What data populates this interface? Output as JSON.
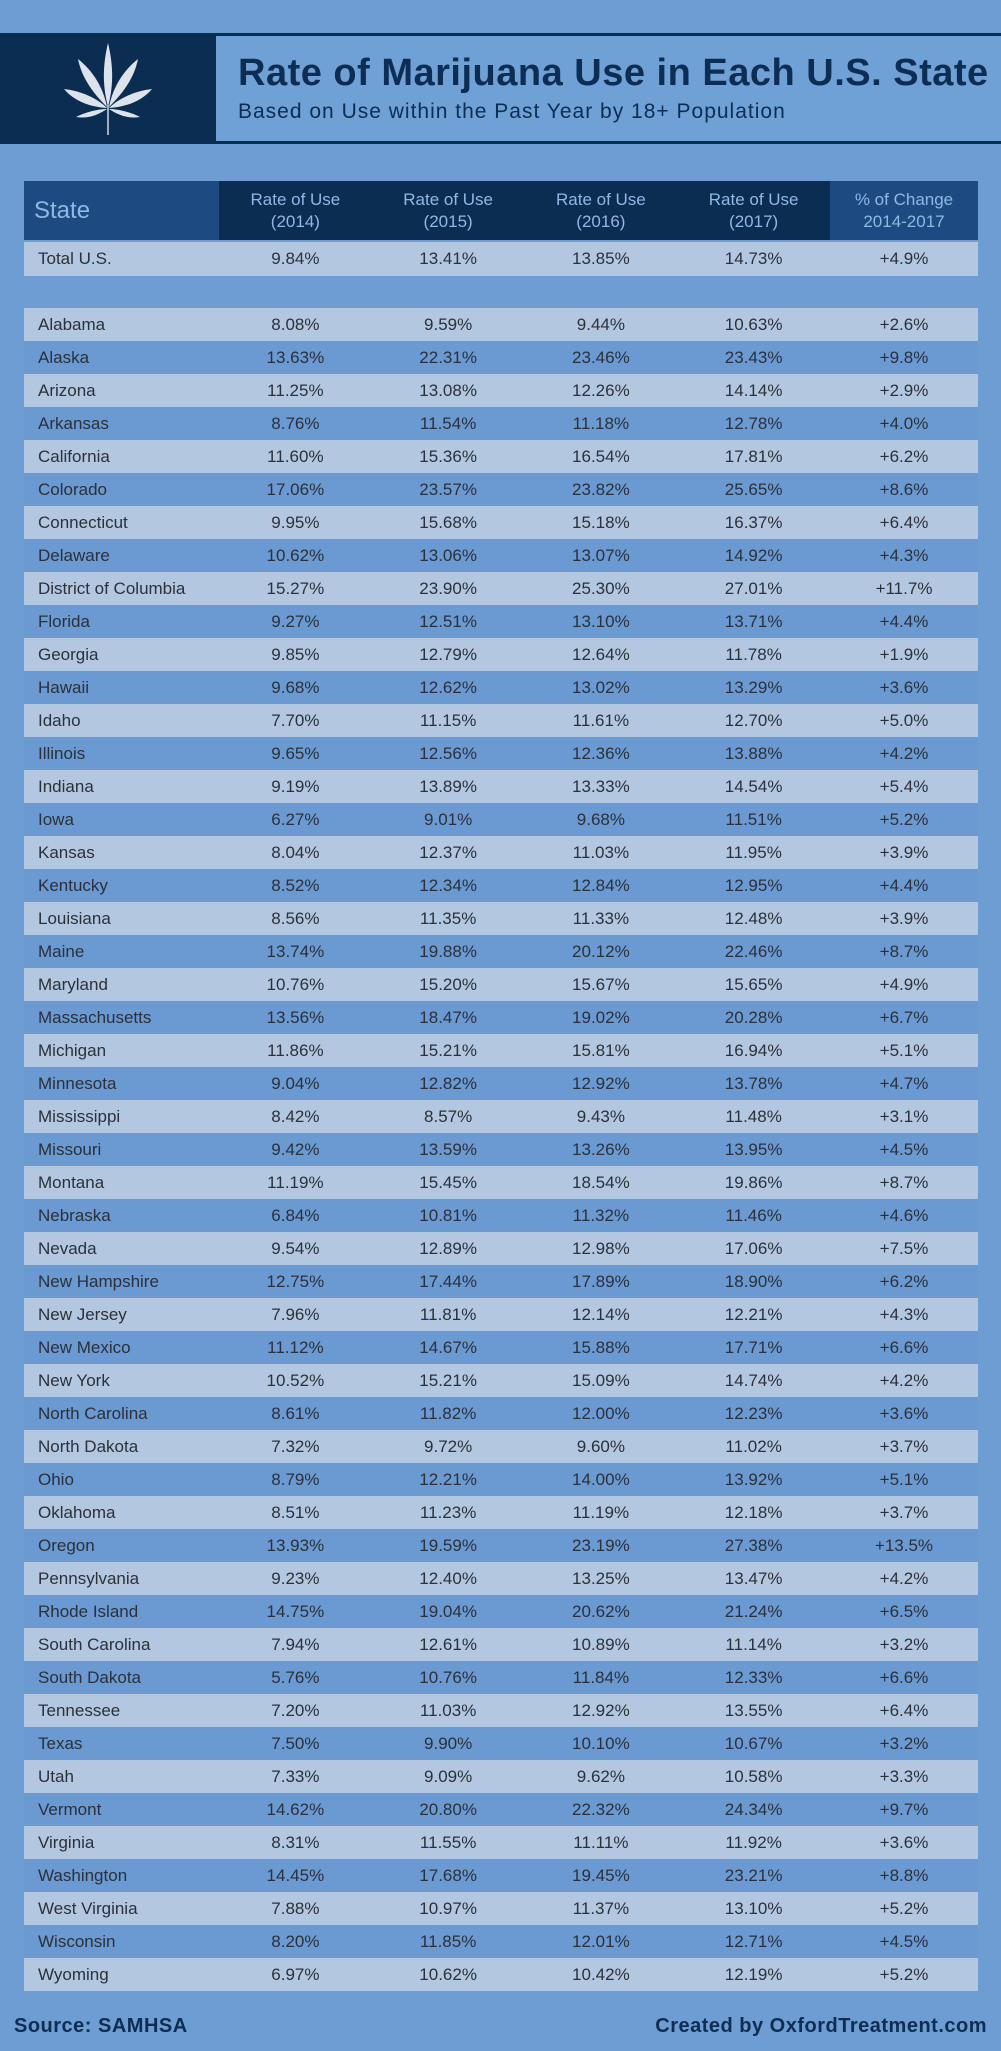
{
  "header": {
    "title": "Rate of Marijuana Use in Each U.S. State",
    "subtitle": "Based on Use within the Past Year by 18+ Population",
    "icon": "cannabis-leaf-icon"
  },
  "table": {
    "columns": [
      "State",
      "Rate of Use\n(2014)",
      "Rate of Use\n(2015)",
      "Rate of Use\n(2016)",
      "Rate of Use\n(2017)",
      "% of Change\n2014-2017"
    ],
    "total": [
      "Total U.S.",
      "9.84%",
      "13.41%",
      "13.85%",
      "14.73%",
      "+4.9%"
    ],
    "rows": [
      [
        "Alabama",
        "8.08%",
        "9.59%",
        "9.44%",
        "10.63%",
        "+2.6%"
      ],
      [
        "Alaska",
        "13.63%",
        "22.31%",
        "23.46%",
        "23.43%",
        "+9.8%"
      ],
      [
        "Arizona",
        "11.25%",
        "13.08%",
        "12.26%",
        "14.14%",
        "+2.9%"
      ],
      [
        "Arkansas",
        "8.76%",
        "11.54%",
        "11.18%",
        "12.78%",
        "+4.0%"
      ],
      [
        "California",
        "11.60%",
        "15.36%",
        "16.54%",
        "17.81%",
        "+6.2%"
      ],
      [
        "Colorado",
        "17.06%",
        "23.57%",
        "23.82%",
        "25.65%",
        "+8.6%"
      ],
      [
        "Connecticut",
        "9.95%",
        "15.68%",
        "15.18%",
        "16.37%",
        "+6.4%"
      ],
      [
        "Delaware",
        "10.62%",
        "13.06%",
        "13.07%",
        "14.92%",
        "+4.3%"
      ],
      [
        "District of Columbia",
        "15.27%",
        "23.90%",
        "25.30%",
        "27.01%",
        "+11.7%"
      ],
      [
        "Florida",
        "9.27%",
        "12.51%",
        "13.10%",
        "13.71%",
        "+4.4%"
      ],
      [
        "Georgia",
        "9.85%",
        "12.79%",
        "12.64%",
        "11.78%",
        "+1.9%"
      ],
      [
        "Hawaii",
        "9.68%",
        "12.62%",
        "13.02%",
        "13.29%",
        "+3.6%"
      ],
      [
        "Idaho",
        "7.70%",
        "11.15%",
        "11.61%",
        "12.70%",
        "+5.0%"
      ],
      [
        "Illinois",
        "9.65%",
        "12.56%",
        "12.36%",
        "13.88%",
        "+4.2%"
      ],
      [
        "Indiana",
        "9.19%",
        "13.89%",
        "13.33%",
        "14.54%",
        "+5.4%"
      ],
      [
        "Iowa",
        "6.27%",
        "9.01%",
        "9.68%",
        "11.51%",
        "+5.2%"
      ],
      [
        "Kansas",
        "8.04%",
        "12.37%",
        "11.03%",
        "11.95%",
        "+3.9%"
      ],
      [
        "Kentucky",
        "8.52%",
        "12.34%",
        "12.84%",
        "12.95%",
        "+4.4%"
      ],
      [
        "Louisiana",
        "8.56%",
        "11.35%",
        "11.33%",
        "12.48%",
        "+3.9%"
      ],
      [
        "Maine",
        "13.74%",
        "19.88%",
        "20.12%",
        "22.46%",
        "+8.7%"
      ],
      [
        "Maryland",
        "10.76%",
        "15.20%",
        "15.67%",
        "15.65%",
        "+4.9%"
      ],
      [
        "Massachusetts",
        "13.56%",
        "18.47%",
        "19.02%",
        "20.28%",
        "+6.7%"
      ],
      [
        "Michigan",
        "11.86%",
        "15.21%",
        "15.81%",
        "16.94%",
        "+5.1%"
      ],
      [
        "Minnesota",
        "9.04%",
        "12.82%",
        "12.92%",
        "13.78%",
        "+4.7%"
      ],
      [
        "Mississippi",
        "8.42%",
        "8.57%",
        "9.43%",
        "11.48%",
        "+3.1%"
      ],
      [
        "Missouri",
        "9.42%",
        "13.59%",
        "13.26%",
        "13.95%",
        "+4.5%"
      ],
      [
        "Montana",
        "11.19%",
        "15.45%",
        "18.54%",
        "19.86%",
        "+8.7%"
      ],
      [
        "Nebraska",
        "6.84%",
        "10.81%",
        "11.32%",
        "11.46%",
        "+4.6%"
      ],
      [
        "Nevada",
        "9.54%",
        "12.89%",
        "12.98%",
        "17.06%",
        "+7.5%"
      ],
      [
        "New Hampshire",
        "12.75%",
        "17.44%",
        "17.89%",
        "18.90%",
        "+6.2%"
      ],
      [
        "New Jersey",
        "7.96%",
        "11.81%",
        "12.14%",
        "12.21%",
        "+4.3%"
      ],
      [
        "New Mexico",
        "11.12%",
        "14.67%",
        "15.88%",
        "17.71%",
        "+6.6%"
      ],
      [
        "New York",
        "10.52%",
        "15.21%",
        "15.09%",
        "14.74%",
        "+4.2%"
      ],
      [
        "North Carolina",
        "8.61%",
        "11.82%",
        "12.00%",
        "12.23%",
        "+3.6%"
      ],
      [
        "North Dakota",
        "7.32%",
        "9.72%",
        "9.60%",
        "11.02%",
        "+3.7%"
      ],
      [
        "Ohio",
        "8.79%",
        "12.21%",
        "14.00%",
        "13.92%",
        "+5.1%"
      ],
      [
        "Oklahoma",
        "8.51%",
        "11.23%",
        "11.19%",
        "12.18%",
        "+3.7%"
      ],
      [
        "Oregon",
        "13.93%",
        "19.59%",
        "23.19%",
        "27.38%",
        "+13.5%"
      ],
      [
        "Pennsylvania",
        "9.23%",
        "12.40%",
        "13.25%",
        "13.47%",
        "+4.2%"
      ],
      [
        "Rhode Island",
        "14.75%",
        "19.04%",
        "20.62%",
        "21.24%",
        "+6.5%"
      ],
      [
        "South Carolina",
        "7.94%",
        "12.61%",
        "10.89%",
        "11.14%",
        "+3.2%"
      ],
      [
        "South Dakota",
        "5.76%",
        "10.76%",
        "11.84%",
        "12.33%",
        "+6.6%"
      ],
      [
        "Tennessee",
        "7.20%",
        "11.03%",
        "12.92%",
        "13.55%",
        "+6.4%"
      ],
      [
        "Texas",
        "7.50%",
        "9.90%",
        "10.10%",
        "10.67%",
        "+3.2%"
      ],
      [
        "Utah",
        "7.33%",
        "9.09%",
        "9.62%",
        "10.58%",
        "+3.3%"
      ],
      [
        "Vermont",
        "14.62%",
        "20.80%",
        "22.32%",
        "24.34%",
        "+9.7%"
      ],
      [
        "Virginia",
        "8.31%",
        "11.55%",
        "11.11%",
        "11.92%",
        "+3.6%"
      ],
      [
        "Washington",
        "14.45%",
        "17.68%",
        "19.45%",
        "23.21%",
        "+8.8%"
      ],
      [
        "West Virginia",
        "7.88%",
        "10.97%",
        "11.37%",
        "13.10%",
        "+5.2%"
      ],
      [
        "Wisconsin",
        "8.20%",
        "11.85%",
        "12.01%",
        "12.71%",
        "+4.5%"
      ],
      [
        "Wyoming",
        "6.97%",
        "10.62%",
        "10.42%",
        "12.19%",
        "+5.2%"
      ]
    ]
  },
  "footer": {
    "source": "Source: SAMHSA",
    "credit": "Created by OxfordTreatment.com"
  }
}
